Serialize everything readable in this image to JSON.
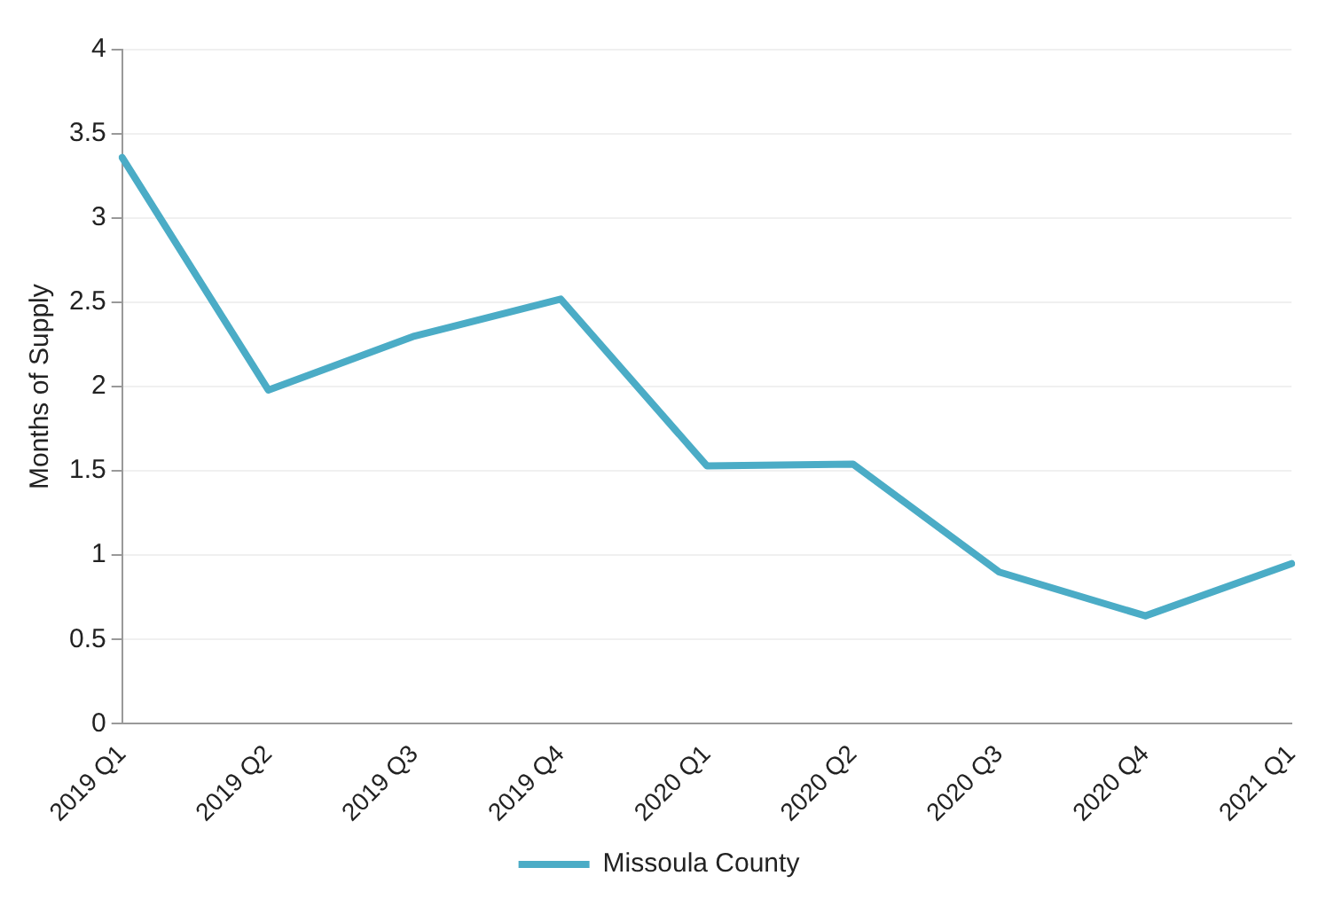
{
  "chart_data": {
    "type": "line",
    "ylabel": "Months of Supply",
    "categories": [
      "2019 Q1",
      "2019 Q2",
      "2019 Q3",
      "2019 Q4",
      "2020 Q1",
      "2020 Q2",
      "2020 Q3",
      "2020 Q4",
      "2021 Q1"
    ],
    "series": [
      {
        "name": "Missoula County",
        "color": "#4bacc6",
        "values": [
          3.36,
          1.98,
          2.3,
          2.52,
          1.53,
          1.54,
          0.9,
          0.64,
          0.95
        ]
      }
    ],
    "ylim": [
      0,
      4
    ],
    "yticks": [
      0,
      0.5,
      1,
      1.5,
      2,
      2.5,
      3,
      3.5,
      4
    ],
    "grid": "y",
    "legend": "bottom",
    "marker": "none",
    "line_style": "solid"
  }
}
